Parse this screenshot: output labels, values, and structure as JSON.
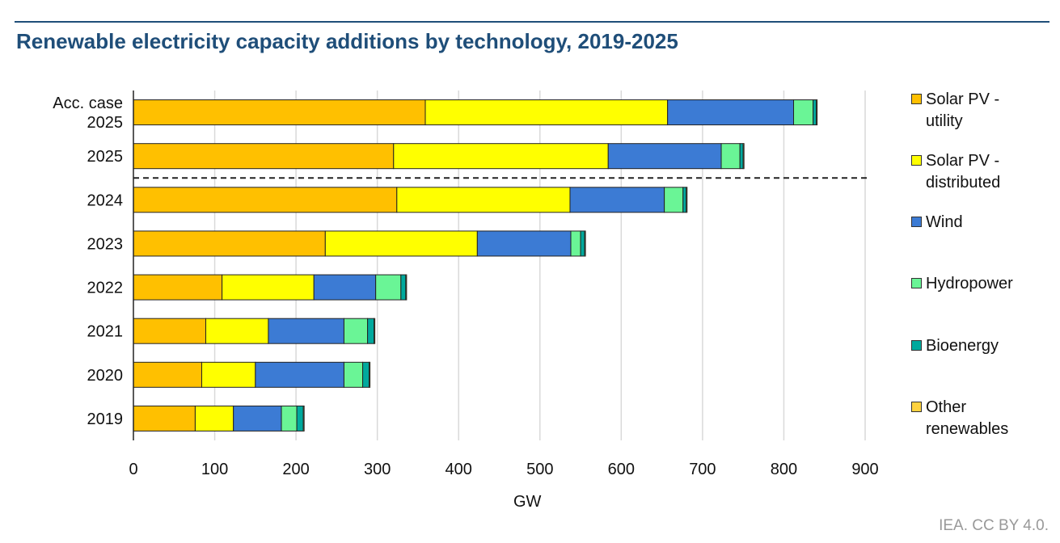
{
  "chart_data": {
    "type": "bar",
    "orientation": "horizontal",
    "stacked": true,
    "title": "Renewable electricity capacity additions by technology, 2019-2025",
    "xlabel": "GW",
    "ylabel": "",
    "xlim": [
      0,
      900
    ],
    "xticks": [
      "0",
      "100",
      "200",
      "300",
      "400",
      "500",
      "600",
      "700",
      "800",
      "900"
    ],
    "grid": "vertical",
    "legend_position": "right",
    "categories": [
      "Acc. case\n2025",
      "2025",
      "2024",
      "2023",
      "2022",
      "2021",
      "2020",
      "2019"
    ],
    "separator_after_category": "2025",
    "series": [
      {
        "name": "Solar PV -\nutility",
        "color": "#FFC000",
        "values": [
          359,
          320,
          324,
          236,
          109,
          89,
          84,
          76
        ]
      },
      {
        "name": "Solar PV -\ndistributed",
        "color": "#FFFF00",
        "values": [
          298,
          264,
          213,
          187,
          113,
          77,
          66,
          47
        ]
      },
      {
        "name": "Wind",
        "color": "#3C7BD4",
        "values": [
          155,
          139,
          116,
          115,
          76,
          93,
          109,
          59
        ]
      },
      {
        "name": "Hydropower",
        "color": "#6AF596",
        "values": [
          24,
          23,
          23,
          12,
          31,
          29,
          23,
          19
        ]
      },
      {
        "name": "Bioenergy",
        "color": "#00A99D",
        "values": [
          4,
          4,
          4,
          5,
          6,
          8,
          8,
          8
        ]
      },
      {
        "name": "Other\nrenewables",
        "color": "#FFD23F",
        "values": [
          1,
          1,
          1,
          1,
          1,
          1,
          1,
          1
        ]
      }
    ]
  },
  "source": "IEA. CC BY 4.0."
}
